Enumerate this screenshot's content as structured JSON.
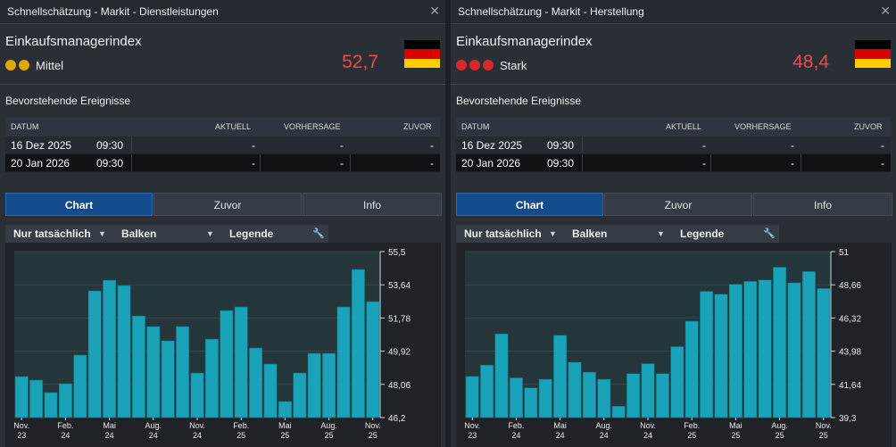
{
  "panels": [
    {
      "title": "Schnellschätzung - Markit - Dienstleistungen",
      "indicator": "Einkaufsmanagerindex",
      "importance": "Mittel",
      "importance_dots": 2,
      "importance_color": "#e0a800",
      "value": "52,7",
      "events_title": "Bevorstehende Ereignisse",
      "columns": [
        "DATUM",
        "AKTUELL",
        "VORHERSAGE",
        "ZUVOR"
      ],
      "events": [
        {
          "date": "16 Dez 2025",
          "time": "09:30",
          "actual": "-",
          "forecast": "-",
          "previous": "-"
        },
        {
          "date": "20 Jan 2026",
          "time": "09:30",
          "actual": "-",
          "forecast": "-",
          "previous": "-"
        }
      ],
      "tabs": [
        "Chart",
        "Zuvor",
        "Info"
      ],
      "controls": {
        "filter": "Nur tatsächlich",
        "type": "Balken",
        "legend": "Legende"
      },
      "chart_data": {
        "type": "bar",
        "bar_color": "#1aa3b8",
        "y_ticks": [
          "55,5",
          "53,64",
          "51,78",
          "49,92",
          "48,06",
          "46,2"
        ],
        "ylim": [
          46.2,
          55.5
        ],
        "x_ticks": [
          {
            "top": "Nov.",
            "bottom": "23",
            "index": 0
          },
          {
            "top": "Feb.",
            "bottom": "24",
            "index": 3
          },
          {
            "top": "Mai",
            "bottom": "24",
            "index": 6
          },
          {
            "top": "Aug.",
            "bottom": "24",
            "index": 9
          },
          {
            "top": "Nov.",
            "bottom": "24",
            "index": 12
          },
          {
            "top": "Feb.",
            "bottom": "25",
            "index": 15
          },
          {
            "top": "Mai",
            "bottom": "25",
            "index": 18
          },
          {
            "top": "Aug.",
            "bottom": "25",
            "index": 21
          },
          {
            "top": "Nov.",
            "bottom": "25",
            "index": 24
          }
        ],
        "values": [
          48.5,
          48.3,
          47.6,
          48.1,
          49.7,
          53.3,
          53.9,
          53.6,
          51.9,
          51.3,
          50.5,
          51.3,
          48.7,
          50.6,
          52.2,
          52.4,
          50.1,
          49.2,
          47.1,
          48.7,
          49.8,
          49.8,
          52.4,
          54.5,
          52.7
        ]
      }
    },
    {
      "title": "Schnellschätzung - Markit - Herstellung",
      "indicator": "Einkaufsmanagerindex",
      "importance": "Stark",
      "importance_dots": 3,
      "importance_color": "#d42a2a",
      "value": "48,4",
      "events_title": "Bevorstehende Ereignisse",
      "columns": [
        "DATUM",
        "AKTUELL",
        "VORHERSAGE",
        "ZUVOR"
      ],
      "events": [
        {
          "date": "16 Dez 2025",
          "time": "09:30",
          "actual": "-",
          "forecast": "-",
          "previous": "-"
        },
        {
          "date": "20 Jan 2026",
          "time": "09:30",
          "actual": "-",
          "forecast": "-",
          "previous": "-"
        }
      ],
      "tabs": [
        "Chart",
        "Zuvor",
        "Info"
      ],
      "controls": {
        "filter": "Nur tatsächlich",
        "type": "Balken",
        "legend": "Legende"
      },
      "chart_data": {
        "type": "bar",
        "bar_color": "#1aa3b8",
        "y_ticks": [
          "51",
          "48,66",
          "46,32",
          "43,98",
          "41,64",
          "39,3"
        ],
        "ylim": [
          39.3,
          51
        ],
        "x_ticks": [
          {
            "top": "Nov.",
            "bottom": "23",
            "index": 0
          },
          {
            "top": "Feb.",
            "bottom": "24",
            "index": 3
          },
          {
            "top": "Mai",
            "bottom": "24",
            "index": 6
          },
          {
            "top": "Aug.",
            "bottom": "24",
            "index": 9
          },
          {
            "top": "Nov.",
            "bottom": "24",
            "index": 12
          },
          {
            "top": "Feb.",
            "bottom": "25",
            "index": 15
          },
          {
            "top": "Mai",
            "bottom": "25",
            "index": 18
          },
          {
            "top": "Aug.",
            "bottom": "25",
            "index": 21
          },
          {
            "top": "Nov.",
            "bottom": "25",
            "index": 24
          }
        ],
        "values": [
          42.2,
          43.0,
          45.2,
          42.1,
          41.4,
          42.0,
          45.1,
          43.2,
          42.5,
          42.0,
          40.1,
          42.4,
          43.1,
          42.4,
          44.3,
          46.1,
          48.2,
          48.0,
          48.7,
          48.9,
          49.0,
          49.9,
          48.8,
          49.6,
          48.4
        ]
      }
    }
  ]
}
